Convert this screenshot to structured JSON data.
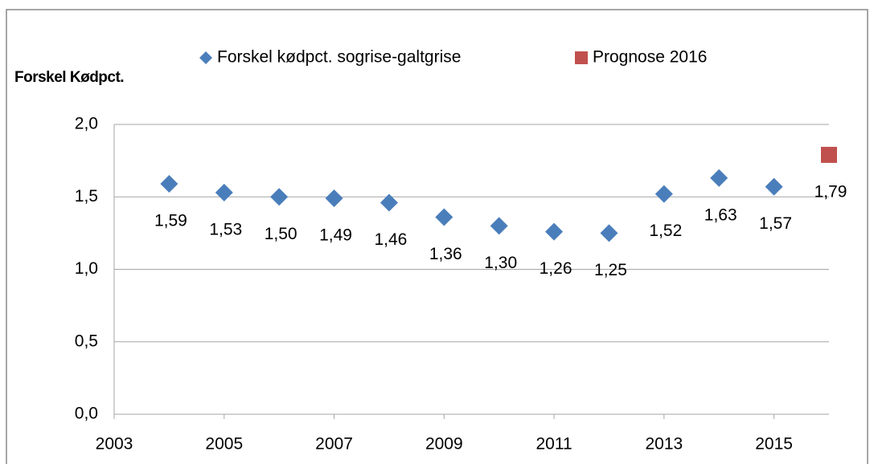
{
  "chart_data": {
    "type": "scatter",
    "y_label": "Forskel Kødpct.",
    "series": [
      {
        "name": "Forskel kødpct. sogrise-galtgrise",
        "color": "#4a7ebb",
        "marker": "diamond",
        "x": [
          2004,
          2005,
          2006,
          2007,
          2008,
          2009,
          2010,
          2011,
          2012,
          2013,
          2014,
          2015
        ],
        "values": [
          1.59,
          1.53,
          1.5,
          1.49,
          1.46,
          1.36,
          1.3,
          1.26,
          1.25,
          1.52,
          1.63,
          1.57
        ],
        "value_labels": [
          "1,59",
          "1,53",
          "1,50",
          "1,49",
          "1,46",
          "1,36",
          "1,30",
          "1,26",
          "1,25",
          "1,52",
          "1,63",
          "1,57"
        ]
      },
      {
        "name": "Prognose 2016",
        "color": "#c0504d",
        "marker": "square",
        "x": [
          2016
        ],
        "values": [
          1.79
        ],
        "value_labels": [
          "1,79"
        ]
      }
    ],
    "xlim": [
      2003,
      2016
    ],
    "xticks": [
      2003,
      2005,
      2007,
      2009,
      2011,
      2013,
      2015
    ],
    "ylim": [
      0,
      2
    ],
    "yticks": [
      {
        "value": 0,
        "label": "0,0"
      },
      {
        "value": 0.5,
        "label": "0,5"
      },
      {
        "value": 1,
        "label": "1,0"
      },
      {
        "value": 1.5,
        "label": "1,5"
      },
      {
        "value": 2,
        "label": "2,0"
      }
    ],
    "grid": true
  }
}
